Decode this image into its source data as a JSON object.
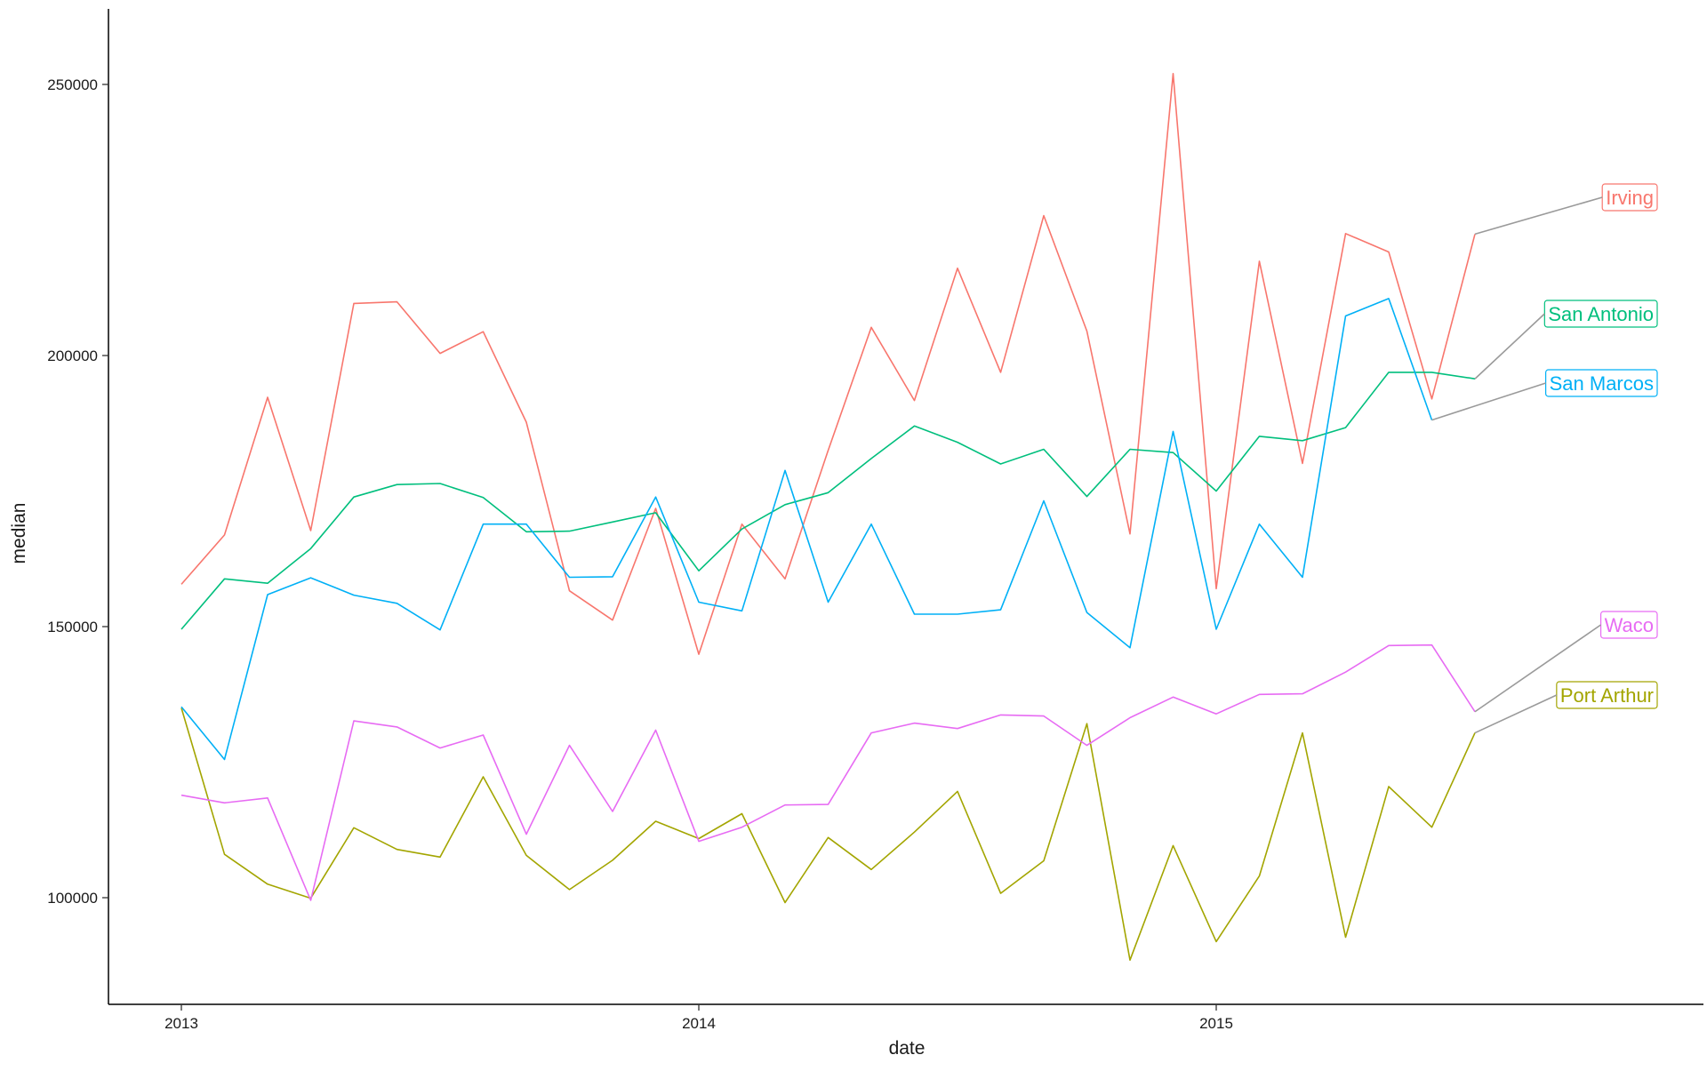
{
  "chart_data": {
    "type": "line",
    "title": "",
    "xlabel": "date",
    "ylabel": "median",
    "x_tick_labels": [
      "2013",
      "2014",
      "2015"
    ],
    "x_tick_dates": [
      "2013-01",
      "2014-01",
      "2015-01"
    ],
    "y_tick_labels": [
      "100000",
      "150000",
      "200000",
      "250000"
    ],
    "y_tick_values": [
      100000,
      150000,
      200000,
      250000
    ],
    "xlim": [
      "2012-11",
      "2015-11"
    ],
    "ylim": [
      80000,
      265000
    ],
    "grid": false,
    "legend": "direct labels at right end of lines",
    "x": [
      "2013-01",
      "2013-02",
      "2013-03",
      "2013-04",
      "2013-05",
      "2013-06",
      "2013-07",
      "2013-08",
      "2013-09",
      "2013-10",
      "2013-11",
      "2013-12",
      "2014-01",
      "2014-02",
      "2014-03",
      "2014-04",
      "2014-05",
      "2014-06",
      "2014-07",
      "2014-08",
      "2014-09",
      "2014-10",
      "2014-11",
      "2014-12",
      "2015-01",
      "2015-02",
      "2015-03",
      "2015-04",
      "2015-05",
      "2015-06",
      "2015-07"
    ],
    "series": [
      {
        "name": "Irving",
        "color": "#F8766D",
        "values": [
          157800,
          166900,
          192300,
          167700,
          209600,
          209900,
          200400,
          204400,
          187700,
          156600,
          151200,
          171800,
          144900,
          168900,
          158800,
          182500,
          205200,
          191700,
          216100,
          196900,
          225800,
          204500,
          167100,
          252000,
          157000,
          217400,
          180100,
          222500,
          219100,
          192000,
          222400
        ]
      },
      {
        "name": "Port Arthur",
        "color": "#A3A500",
        "values": [
          135000,
          108000,
          102500,
          99900,
          112900,
          108900,
          107500,
          122300,
          107800,
          101500,
          106900,
          114100,
          110900,
          115500,
          99100,
          111100,
          105200,
          112100,
          119600,
          100800,
          106800,
          132100,
          88500,
          109600,
          91900,
          104000,
          130400,
          92700,
          120500,
          113000,
          130400
        ]
      },
      {
        "name": "San Antonio",
        "color": "#00BF7D",
        "values": [
          149500,
          158800,
          158000,
          164400,
          173900,
          176200,
          176400,
          173800,
          167500,
          167600,
          169300,
          171000,
          160300,
          168000,
          172500,
          174700,
          181000,
          187000,
          184000,
          180000,
          182700,
          174000,
          182700,
          182100,
          175000,
          185100,
          184300,
          186700,
          196900,
          196900,
          195700
        ]
      },
      {
        "name": "San Marcos",
        "color": "#00B0F6",
        "values": [
          135200,
          125500,
          155900,
          159000,
          155800,
          154300,
          149400,
          168900,
          168900,
          159100,
          159200,
          173900,
          154500,
          152900,
          178800,
          154500,
          168900,
          152300,
          152300,
          153100,
          173200,
          152600,
          146100,
          186000,
          149500,
          168900,
          159100,
          207300,
          210500,
          188100,
          null
        ]
      },
      {
        "name": "Waco",
        "color": "#E76BF3",
        "values": [
          118900,
          117500,
          118400,
          99500,
          132600,
          131500,
          127600,
          130000,
          111700,
          128100,
          115900,
          130900,
          110400,
          113000,
          117100,
          117200,
          130400,
          132200,
          131200,
          133700,
          133500,
          128100,
          133200,
          137000,
          133900,
          137500,
          137600,
          141600,
          146500,
          146600,
          134300
        ]
      }
    ],
    "annotations": [
      {
        "series": "Irving",
        "text": "Irving",
        "color": "#F8766D"
      },
      {
        "series": "San Antonio",
        "text": "San Antonio",
        "color": "#00BF7D"
      },
      {
        "series": "San Marcos",
        "text": "San Marcos",
        "color": "#00B0F6"
      },
      {
        "series": "Waco",
        "text": "Waco",
        "color": "#E76BF3"
      },
      {
        "series": "Port Arthur",
        "text": "Port Arthur",
        "color": "#A3A500"
      }
    ]
  }
}
